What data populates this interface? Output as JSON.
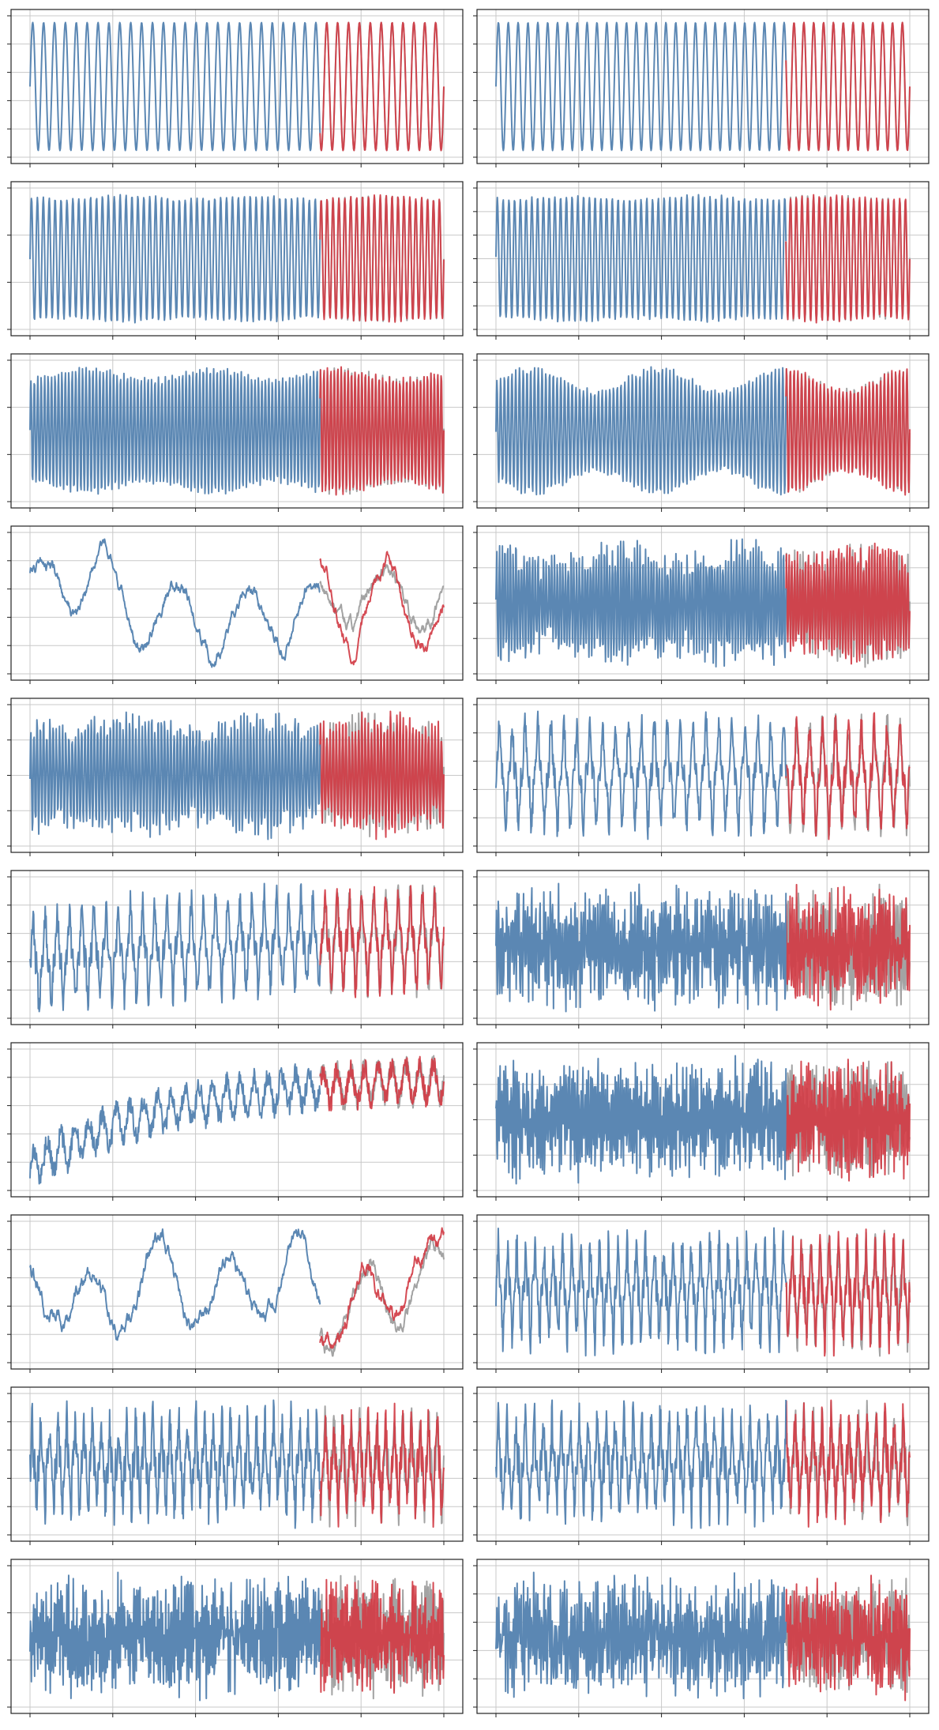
{
  "chart_data": [
    {
      "type": "line",
      "kind": "sine",
      "cycles": 38,
      "amp": 1.0,
      "noise": 0.0,
      "trend": 0.0,
      "envelope": 0.0,
      "seed": 1,
      "y_tick_count": 6,
      "series": [
        {
          "role": "history"
        },
        {
          "role": "actual"
        },
        {
          "role": "forecast"
        }
      ],
      "colors": {
        "history": "#5b87b3",
        "forecast": "#d13c45",
        "actual": "#a3a3a3"
      },
      "grid": true
    },
    {
      "type": "line",
      "kind": "sine",
      "cycles": 42,
      "amp": 1.0,
      "noise": 0.0,
      "trend": 0.0,
      "envelope": 0.0,
      "seed": 2,
      "y_tick_count": 6,
      "series": [
        {
          "role": "history"
        },
        {
          "role": "actual"
        },
        {
          "role": "forecast"
        }
      ],
      "colors": {
        "history": "#5b87b3",
        "forecast": "#d13c45",
        "actual": "#a3a3a3"
      },
      "grid": true
    },
    {
      "type": "line",
      "kind": "sine",
      "cycles": 70,
      "amp": 1.0,
      "noise": 0.02,
      "trend": 0.0,
      "envelope": 0.03,
      "seed": 3,
      "y_tick_count": 4,
      "series": [
        {
          "role": "history"
        },
        {
          "role": "actual"
        },
        {
          "role": "forecast"
        }
      ],
      "colors": {
        "history": "#5b87b3",
        "forecast": "#d13c45",
        "actual": "#a3a3a3"
      },
      "grid": true
    },
    {
      "type": "line",
      "kind": "sine",
      "cycles": 72,
      "amp": 1.0,
      "noise": 0.03,
      "trend": 0.0,
      "envelope": 0.03,
      "seed": 4,
      "y_tick_count": 7,
      "series": [
        {
          "role": "history"
        },
        {
          "role": "actual"
        },
        {
          "role": "forecast"
        }
      ],
      "colors": {
        "history": "#5b87b3",
        "forecast": "#d13c45",
        "actual": "#a3a3a3"
      },
      "grid": true
    },
    {
      "type": "line",
      "kind": "sine",
      "cycles": 120,
      "amp": 1.0,
      "noise": 0.05,
      "trend": 0.0,
      "envelope": 0.1,
      "seed": 5,
      "y_tick_count": 4,
      "series": [
        {
          "role": "history"
        },
        {
          "role": "actual"
        },
        {
          "role": "forecast"
        }
      ],
      "colors": {
        "history": "#5b87b3",
        "forecast": "#d13c45",
        "actual": "#a3a3a3"
      },
      "grid": true
    },
    {
      "type": "line",
      "kind": "sine",
      "cycles": 110,
      "amp": 1.0,
      "noise": 0.05,
      "trend": 0.0,
      "envelope": 0.22,
      "seed": 6,
      "y_tick_count": 4,
      "series": [
        {
          "role": "history"
        },
        {
          "role": "actual"
        },
        {
          "role": "forecast"
        }
      ],
      "colors": {
        "history": "#5b87b3",
        "forecast": "#d13c45",
        "actual": "#a3a3a3"
      },
      "grid": true
    },
    {
      "type": "line",
      "kind": "walk",
      "cycles": 6,
      "amp": 0.55,
      "noise": 0.12,
      "trend": 0.0,
      "envelope": 0.0,
      "seed": 7,
      "y_tick_count": 6,
      "series": [
        {
          "role": "history"
        },
        {
          "role": "actual"
        },
        {
          "role": "forecast"
        }
      ],
      "colors": {
        "history": "#5b87b3",
        "forecast": "#d13c45",
        "actual": "#a3a3a3"
      },
      "grid": true
    },
    {
      "type": "line",
      "kind": "dense",
      "cycles": 150,
      "amp": 0.75,
      "noise": 0.25,
      "trend": 0.0,
      "envelope": 0.15,
      "seed": 8,
      "y_tick_count": 5,
      "series": [
        {
          "role": "history"
        },
        {
          "role": "actual"
        },
        {
          "role": "forecast"
        }
      ],
      "colors": {
        "history": "#5b87b3",
        "forecast": "#d13c45",
        "actual": "#a3a3a3"
      },
      "grid": true
    },
    {
      "type": "line",
      "kind": "dense",
      "cycles": 130,
      "amp": 0.8,
      "noise": 0.2,
      "trend": 0.0,
      "envelope": 0.1,
      "seed": 9,
      "y_tick_count": 5,
      "series": [
        {
          "role": "history"
        },
        {
          "role": "actual"
        },
        {
          "role": "forecast"
        }
      ],
      "colors": {
        "history": "#5b87b3",
        "forecast": "#d13c45",
        "actual": "#a3a3a3"
      },
      "grid": true
    },
    {
      "type": "line",
      "kind": "spiky",
      "cycles": 32,
      "amp": 0.7,
      "noise": 0.3,
      "trend": 0.0,
      "envelope": 0.0,
      "seed": 10,
      "y_tick_count": 6,
      "series": [
        {
          "role": "history"
        },
        {
          "role": "actual"
        },
        {
          "role": "forecast"
        }
      ],
      "colors": {
        "history": "#5b87b3",
        "forecast": "#d13c45",
        "actual": "#a3a3a3"
      },
      "grid": true
    },
    {
      "type": "line",
      "kind": "spiky",
      "cycles": 34,
      "amp": 0.65,
      "noise": 0.3,
      "trend": 0.25,
      "envelope": 0.0,
      "seed": 11,
      "y_tick_count": 6,
      "series": [
        {
          "role": "history"
        },
        {
          "role": "actual"
        },
        {
          "role": "forecast"
        }
      ],
      "colors": {
        "history": "#5b87b3",
        "forecast": "#d13c45",
        "actual": "#a3a3a3"
      },
      "grid": true
    },
    {
      "type": "line",
      "kind": "noise",
      "cycles": 200,
      "amp": 0.7,
      "noise": 0.55,
      "trend": 0.0,
      "envelope": 0.0,
      "seed": 12,
      "y_tick_count": 6,
      "series": [
        {
          "role": "history"
        },
        {
          "role": "actual"
        },
        {
          "role": "forecast"
        }
      ],
      "colors": {
        "history": "#5b87b3",
        "forecast": "#d13c45",
        "actual": "#a3a3a3"
      },
      "grid": true
    },
    {
      "type": "line",
      "kind": "trend",
      "cycles": 30,
      "amp": 0.25,
      "noise": 0.15,
      "trend": 1.0,
      "envelope": 0.0,
      "seed": 13,
      "y_tick_count": 6,
      "series": [
        {
          "role": "history"
        },
        {
          "role": "actual"
        },
        {
          "role": "forecast"
        }
      ],
      "colors": {
        "history": "#5b87b3",
        "forecast": "#d13c45",
        "actual": "#a3a3a3"
      },
      "grid": true
    },
    {
      "type": "line",
      "kind": "noise",
      "cycles": 220,
      "amp": 0.75,
      "noise": 0.5,
      "trend": 0.0,
      "envelope": 0.0,
      "seed": 14,
      "y_tick_count": 5,
      "series": [
        {
          "role": "history"
        },
        {
          "role": "actual"
        },
        {
          "role": "forecast"
        }
      ],
      "colors": {
        "history": "#5b87b3",
        "forecast": "#d13c45",
        "actual": "#a3a3a3"
      },
      "grid": true
    },
    {
      "type": "line",
      "kind": "walk",
      "cycles": 6,
      "amp": 0.5,
      "noise": 0.14,
      "trend": 0.0,
      "envelope": 0.0,
      "seed": 15,
      "y_tick_count": 6,
      "series": [
        {
          "role": "history"
        },
        {
          "role": "actual"
        },
        {
          "role": "forecast"
        }
      ],
      "colors": {
        "history": "#5b87b3",
        "forecast": "#d13c45",
        "actual": "#a3a3a3"
      },
      "grid": true
    },
    {
      "type": "line",
      "kind": "spiky",
      "cycles": 45,
      "amp": 0.6,
      "noise": 0.35,
      "trend": 0.0,
      "envelope": 0.0,
      "seed": 16,
      "y_tick_count": 6,
      "series": [
        {
          "role": "history"
        },
        {
          "role": "actual"
        },
        {
          "role": "forecast"
        }
      ],
      "colors": {
        "history": "#5b87b3",
        "forecast": "#d13c45",
        "actual": "#a3a3a3"
      },
      "grid": true
    },
    {
      "type": "line",
      "kind": "spiky",
      "cycles": 48,
      "amp": 0.55,
      "noise": 0.4,
      "trend": 0.0,
      "envelope": 0.0,
      "seed": 17,
      "y_tick_count": 6,
      "series": [
        {
          "role": "history"
        },
        {
          "role": "actual"
        },
        {
          "role": "forecast"
        }
      ],
      "colors": {
        "history": "#5b87b3",
        "forecast": "#d13c45",
        "actual": "#a3a3a3"
      },
      "grid": true
    },
    {
      "type": "line",
      "kind": "spiky",
      "cycles": 46,
      "amp": 0.55,
      "noise": 0.4,
      "trend": 0.0,
      "envelope": 0.0,
      "seed": 18,
      "y_tick_count": 6,
      "series": [
        {
          "role": "history"
        },
        {
          "role": "actual"
        },
        {
          "role": "forecast"
        }
      ],
      "colors": {
        "history": "#5b87b3",
        "forecast": "#d13c45",
        "actual": "#a3a3a3"
      },
      "grid": true
    },
    {
      "type": "line",
      "kind": "noise",
      "cycles": 260,
      "amp": 0.7,
      "noise": 0.55,
      "trend": 0.0,
      "envelope": 0.0,
      "seed": 19,
      "y_tick_count": 4,
      "series": [
        {
          "role": "history"
        },
        {
          "role": "actual"
        },
        {
          "role": "forecast"
        }
      ],
      "colors": {
        "history": "#5b87b3",
        "forecast": "#d13c45",
        "actual": "#a3a3a3"
      },
      "grid": true
    },
    {
      "type": "line",
      "kind": "noise",
      "cycles": 200,
      "amp": 0.6,
      "noise": 0.6,
      "trend": 0.0,
      "envelope": 0.0,
      "seed": 20,
      "y_tick_count": 6,
      "series": [
        {
          "role": "history"
        },
        {
          "role": "actual"
        },
        {
          "role": "forecast"
        }
      ],
      "colors": {
        "history": "#5b87b3",
        "forecast": "#d13c45",
        "actual": "#a3a3a3"
      },
      "grid": true
    }
  ]
}
